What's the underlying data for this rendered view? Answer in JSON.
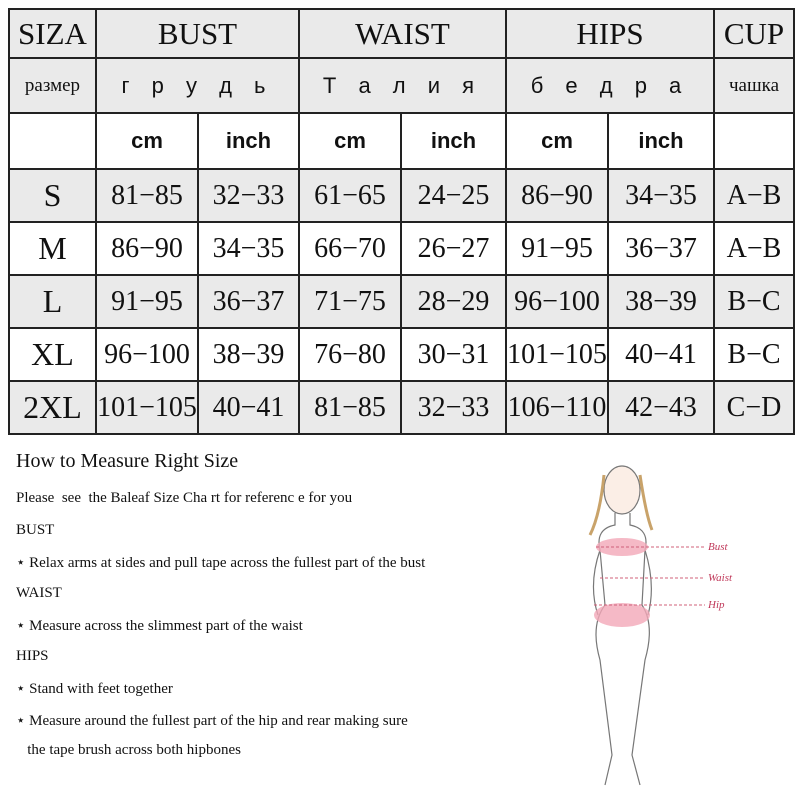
{
  "table": {
    "header_en": [
      "SIZA",
      "BUST",
      "WAIST",
      "HIPS",
      "CUP"
    ],
    "header_ru": [
      "размер",
      "г р у д ь",
      "Т а л и я",
      "б е д р а",
      "чашка"
    ],
    "units": [
      "cm",
      "inch",
      "cm",
      "inch",
      "cm",
      "inch"
    ],
    "rows": [
      [
        "S",
        "81−85",
        "32−33",
        "61−65",
        "24−25",
        "86−90",
        "34−35",
        "A−B"
      ],
      [
        "M",
        "86−90",
        "34−35",
        "66−70",
        "26−27",
        "91−95",
        "36−37",
        "A−B"
      ],
      [
        "L",
        "91−95",
        "36−37",
        "71−75",
        "28−29",
        "96−100",
        "38−39",
        "B−C"
      ],
      [
        "XL",
        "96−100",
        "38−39",
        "76−80",
        "30−31",
        "101−105",
        "40−41",
        "B−C"
      ],
      [
        "2XL",
        "101−105",
        "40−41",
        "81−85",
        "32−33",
        "106−110",
        "42−43",
        "C−D"
      ]
    ]
  },
  "guide": {
    "title": "How to Measure Right Size",
    "lines": [
      "Please  see  the Baleaf Size Cha rt for referenc e for you",
      "BUST",
      "⋆ Relax arms at sides and pull tape across the fullest part of the bust",
      "WAIST",
      "⋆ Measure across the slimmest part of the waist",
      "HIPS",
      "⋆ Stand with feet together",
      "⋆ Measure around the fullest part of the hip and rear making sure",
      "   the tape brush across both hipbones"
    ]
  },
  "figure": {
    "labels": [
      "Bust",
      "Waist",
      "Hip"
    ],
    "label_color": "#c0395a"
  }
}
